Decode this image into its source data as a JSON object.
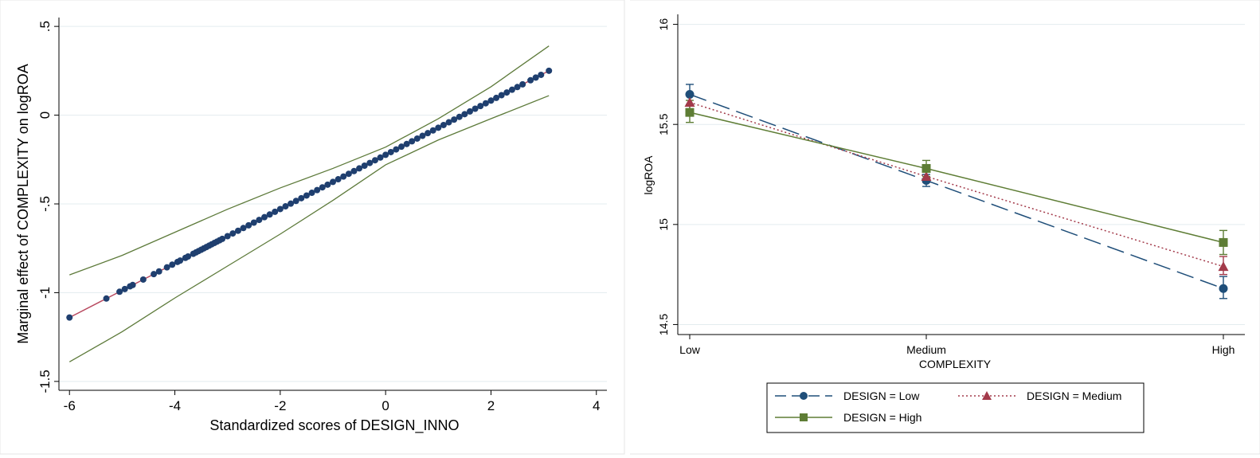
{
  "chart_data": [
    {
      "type": "line",
      "xlabel": "Standardized scores of DESIGN_INNO",
      "ylabel": "Marginal effect of COMPLEXITY on logROA",
      "xlim": [
        -6.2,
        4.2
      ],
      "ylim": [
        -1.55,
        0.55
      ],
      "xticks": [
        "-6",
        "-4",
        "-2",
        "0",
        "2",
        "4"
      ],
      "yticks": [
        "-1.5",
        "-1",
        "-.5",
        "0",
        ".5"
      ],
      "grid": true,
      "colors": {
        "line": "#b8495f",
        "marker": "#1f3f6f",
        "ci": "#5d7a3a"
      },
      "series": [
        {
          "role": "estimate",
          "x": [
            -6.0,
            3.1
          ],
          "y": [
            -1.14,
            0.25
          ],
          "marker_x": [
            -6.0,
            -5.3,
            -5.05,
            -4.95,
            -4.85,
            -4.8,
            -4.6,
            -4.4,
            -4.3,
            -4.15,
            -4.05,
            -3.95,
            -3.9,
            -3.8,
            -3.75,
            -3.65,
            -3.6,
            -3.55,
            -3.5,
            -3.45,
            -3.4,
            -3.35,
            -3.3,
            -3.25,
            -3.2,
            -3.15,
            -3.1,
            -3.0,
            -2.9,
            -2.8,
            -2.7,
            -2.6,
            -2.5,
            -2.4,
            -2.3,
            -2.2,
            -2.1,
            -2.0,
            -1.9,
            -1.8,
            -1.7,
            -1.6,
            -1.5,
            -1.4,
            -1.3,
            -1.2,
            -1.1,
            -1.0,
            -0.9,
            -0.8,
            -0.7,
            -0.6,
            -0.5,
            -0.4,
            -0.3,
            -0.2,
            -0.1,
            0.0,
            0.1,
            0.2,
            0.3,
            0.4,
            0.5,
            0.6,
            0.7,
            0.8,
            0.9,
            1.0,
            1.1,
            1.2,
            1.3,
            1.4,
            1.5,
            1.6,
            1.7,
            1.8,
            1.9,
            2.0,
            2.1,
            2.2,
            2.3,
            2.4,
            2.5,
            2.6,
            2.75,
            2.85,
            2.95,
            3.1
          ]
        },
        {
          "role": "ci_upper",
          "x": [
            -6.0,
            -5.0,
            -4.0,
            -3.0,
            -2.0,
            -1.0,
            0.0,
            1.0,
            2.0,
            3.1
          ],
          "y": [
            -0.9,
            -0.79,
            -0.66,
            -0.53,
            -0.41,
            -0.3,
            -0.18,
            -0.02,
            0.16,
            0.39
          ]
        },
        {
          "role": "ci_lower",
          "x": [
            -6.0,
            -5.0,
            -4.0,
            -3.0,
            -2.0,
            -1.0,
            0.0,
            1.0,
            2.0,
            3.1
          ],
          "y": [
            -1.39,
            -1.22,
            -1.03,
            -0.85,
            -0.67,
            -0.48,
            -0.28,
            -0.14,
            -0.02,
            0.11
          ]
        }
      ]
    },
    {
      "type": "line",
      "xlabel": "COMPLEXITY",
      "ylabel": "logROA",
      "categories": [
        "Low",
        "Medium",
        "High"
      ],
      "ylim": [
        14.45,
        16.05
      ],
      "yticks": [
        "14.5",
        "15",
        "15.5",
        "16"
      ],
      "grid": true,
      "legend_position": "bottom",
      "series": [
        {
          "name": "DESIGN = Low",
          "values": [
            15.65,
            15.22,
            14.68
          ],
          "ci": [
            [
              15.6,
              15.7
            ],
            [
              15.19,
              15.25
            ],
            [
              14.63,
              14.74
            ]
          ],
          "color": "#1f4e79",
          "dash": "long-dash",
          "marker": "circle"
        },
        {
          "name": "DESIGN = Medium",
          "values": [
            15.61,
            15.24,
            14.79
          ],
          "ci": [
            [
              15.57,
              15.65
            ],
            [
              15.21,
              15.28
            ],
            [
              14.75,
              14.84
            ]
          ],
          "color": "#a33a4a",
          "dash": "dot",
          "marker": "triangle"
        },
        {
          "name": "DESIGN = High",
          "values": [
            15.56,
            15.28,
            14.91
          ],
          "ci": [
            [
              15.51,
              15.62
            ],
            [
              15.24,
              15.32
            ],
            [
              14.85,
              14.97
            ]
          ],
          "color": "#5e7d35",
          "dash": "solid",
          "marker": "square"
        }
      ]
    }
  ]
}
